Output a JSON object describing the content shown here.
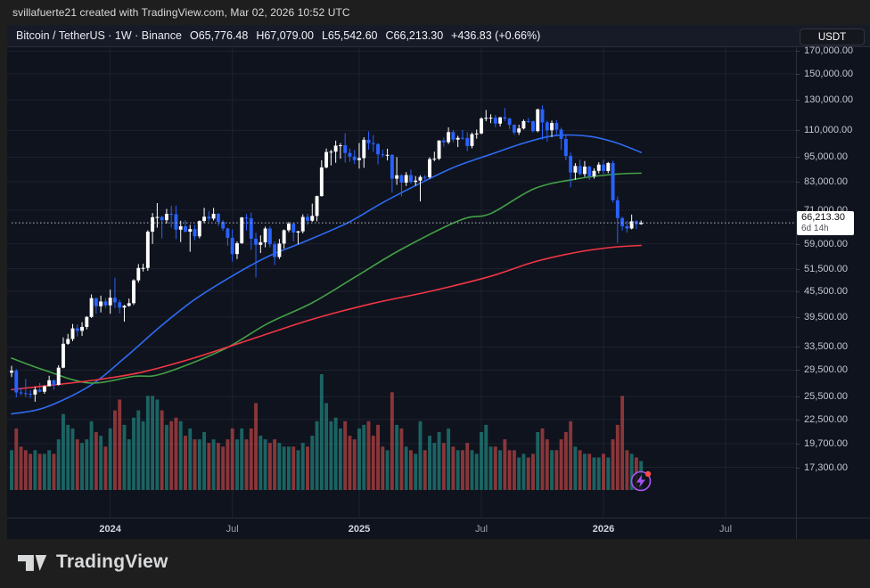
{
  "top_bar": {
    "attribution": "svillafuerte21 created with TradingView.com, Mar 02, 2026 10:52 UTC"
  },
  "header": {
    "symbol_text": "Bitcoin / TetherUS · 1W · Binance",
    "ohlc": {
      "o": "O65,776.48",
      "h": "H67,079.00",
      "l": "L65,542.60",
      "c": "C66,213.30"
    },
    "change": "+436.83 (+0.66%)",
    "currency_button": "USDT"
  },
  "price_scale": {
    "ticks": [
      {
        "label": "170,000.00",
        "price": 170000
      },
      {
        "label": "150,000.00",
        "price": 150000
      },
      {
        "label": "130,000.00",
        "price": 130000
      },
      {
        "label": "110,000.00",
        "price": 110000
      },
      {
        "label": "95,000.00",
        "price": 95000
      },
      {
        "label": "83,000.00",
        "price": 83000
      },
      {
        "label": "71,000.00",
        "price": 71000
      },
      {
        "label": "59,000.00",
        "price": 59000
      },
      {
        "label": "51,500.00",
        "price": 51500
      },
      {
        "label": "45,500.00",
        "price": 45500
      },
      {
        "label": "39,500.00",
        "price": 39500
      },
      {
        "label": "33,500.00",
        "price": 33500
      },
      {
        "label": "29,500.00",
        "price": 29500
      },
      {
        "label": "25,500.00",
        "price": 25500
      },
      {
        "label": "22,500.00",
        "price": 22500
      },
      {
        "label": "19,700.00",
        "price": 19700
      },
      {
        "label": "17,300.00",
        "price": 17300
      }
    ],
    "current_price": {
      "label": "66,213.30",
      "countdown": "6d 14h",
      "price": 66213.3
    }
  },
  "time_scale": {
    "labels": [
      {
        "label": "2024",
        "week": 21,
        "major": true
      },
      {
        "label": "Jul",
        "week": 47,
        "major": false
      },
      {
        "label": "2025",
        "week": 74,
        "major": true
      },
      {
        "label": "Jul",
        "week": 100,
        "major": false
      },
      {
        "label": "2026",
        "week": 126,
        "major": true
      },
      {
        "label": "Jul",
        "week": 152,
        "major": false
      }
    ]
  },
  "branding": {
    "logo_text": "TradingView"
  },
  "colors": {
    "chart_bg": "#0f131d",
    "frame_bg": "#1e1e1e",
    "grid": "#1e2230",
    "candle_up": "#ffffff",
    "candle_down": "#2962ff",
    "volume_up": "rgba(38,166,154,0.55)",
    "volume_down": "rgba(239,83,80,0.55)",
    "ma_fast": "#2e6bf2",
    "ma_mid": "#43a047",
    "ma_slow": "#f23645",
    "dotted_price_line": "#b9bcc5",
    "axis_text": "#c3c7d1",
    "flash_icon": "#a855f7",
    "flash_dot": "#ff4a4a"
  },
  "chart_data": {
    "type": "candlestick",
    "title": "Bitcoin / TetherUS weekly with 3 moving averages and volume",
    "symbol": "BTCUSDT",
    "exchange": "Binance",
    "interval": "1W",
    "scale": "logarithmic",
    "x_range_weeks": [
      "2023-08-07",
      "2026-03-02"
    ],
    "y_axis_unit": "USDT",
    "values_unit": "thousands USDT, columns [open,high,low,close,volume_rel]",
    "last_candle_ohlc": [
      65.776,
      67.079,
      65.543,
      66.213
    ],
    "candles": [
      [
        29.1,
        30.2,
        28.4,
        29.4,
        55
      ],
      [
        29.4,
        29.7,
        25.4,
        26.1,
        85
      ],
      [
        26.1,
        26.8,
        25.7,
        26.0,
        60
      ],
      [
        26.0,
        28.1,
        25.4,
        25.9,
        55
      ],
      [
        25.9,
        26.4,
        25.3,
        25.8,
        50
      ],
      [
        25.8,
        26.9,
        24.8,
        26.5,
        55
      ],
      [
        26.5,
        27.5,
        26.1,
        26.2,
        50
      ],
      [
        26.2,
        27.1,
        25.9,
        27.0,
        50
      ],
      [
        27.0,
        28.6,
        27.0,
        27.9,
        55
      ],
      [
        27.9,
        28.0,
        26.5,
        27.2,
        50
      ],
      [
        27.2,
        30.3,
        27.1,
        29.9,
        70
      ],
      [
        29.9,
        35.3,
        29.8,
        34.1,
        105
      ],
      [
        34.1,
        36.0,
        33.9,
        35.0,
        90
      ],
      [
        35.0,
        38.0,
        34.6,
        37.1,
        85
      ],
      [
        37.1,
        37.9,
        35.5,
        36.6,
        70
      ],
      [
        36.6,
        38.4,
        35.6,
        37.4,
        65
      ],
      [
        37.4,
        39.7,
        36.9,
        39.5,
        70
      ],
      [
        39.5,
        44.7,
        39.3,
        43.8,
        95
      ],
      [
        43.8,
        43.9,
        40.2,
        41.9,
        80
      ],
      [
        41.9,
        44.4,
        40.5,
        43.0,
        75
      ],
      [
        43.0,
        43.8,
        41.5,
        42.1,
        60
      ],
      [
        42.1,
        45.9,
        40.2,
        43.9,
        85
      ],
      [
        43.9,
        49.0,
        41.5,
        42.8,
        110
      ],
      [
        42.8,
        43.4,
        40.3,
        41.6,
        125
      ],
      [
        41.6,
        42.2,
        38.5,
        42.0,
        90
      ],
      [
        42.0,
        43.7,
        41.8,
        42.6,
        70
      ],
      [
        42.6,
        48.6,
        42.2,
        48.3,
        100
      ],
      [
        48.3,
        52.8,
        47.7,
        51.7,
        110
      ],
      [
        51.7,
        52.9,
        50.7,
        51.7,
        95
      ],
      [
        51.7,
        63.6,
        50.9,
        63.1,
        130
      ],
      [
        63.1,
        69.9,
        59.0,
        68.3,
        130
      ],
      [
        68.3,
        73.8,
        64.5,
        68.4,
        125
      ],
      [
        68.4,
        68.9,
        60.8,
        67.2,
        110
      ],
      [
        67.2,
        71.5,
        66.0,
        69.6,
        90
      ],
      [
        69.6,
        72.7,
        64.5,
        69.4,
        95
      ],
      [
        69.4,
        72.8,
        60.6,
        63.8,
        100
      ],
      [
        63.8,
        67.0,
        59.6,
        65.0,
        95
      ],
      [
        65.0,
        67.2,
        62.8,
        63.1,
        75
      ],
      [
        63.1,
        65.5,
        56.5,
        64.0,
        85
      ],
      [
        64.0,
        65.5,
        60.2,
        61.5,
        70
      ],
      [
        61.5,
        67.1,
        60.8,
        66.9,
        70
      ],
      [
        66.9,
        71.9,
        66.1,
        68.5,
        80
      ],
      [
        68.5,
        70.6,
        66.7,
        67.8,
        65
      ],
      [
        67.8,
        71.9,
        67.1,
        69.6,
        70
      ],
      [
        69.6,
        69.9,
        65.1,
        66.6,
        65
      ],
      [
        66.6,
        67.3,
        63.4,
        64.2,
        60
      ],
      [
        64.2,
        64.5,
        58.4,
        61.0,
        70
      ],
      [
        61.0,
        63.9,
        53.5,
        55.8,
        85
      ],
      [
        55.8,
        59.8,
        54.3,
        59.2,
        70
      ],
      [
        59.2,
        68.4,
        59.0,
        68.2,
        85
      ],
      [
        68.2,
        69.5,
        63.5,
        67.9,
        70
      ],
      [
        67.9,
        70.1,
        57.1,
        60.7,
        85
      ],
      [
        60.7,
        62.7,
        49.1,
        58.7,
        120
      ],
      [
        58.7,
        61.8,
        56.1,
        59.5,
        75
      ],
      [
        59.5,
        64.9,
        57.9,
        64.2,
        70
      ],
      [
        64.2,
        65.0,
        57.9,
        58.9,
        65
      ],
      [
        58.9,
        59.8,
        52.5,
        54.9,
        70
      ],
      [
        54.9,
        60.6,
        54.3,
        59.1,
        65
      ],
      [
        59.1,
        63.9,
        57.5,
        63.6,
        60
      ],
      [
        63.6,
        66.5,
        62.9,
        65.9,
        60
      ],
      [
        65.9,
        66.3,
        59.8,
        62.8,
        60
      ],
      [
        62.8,
        63.4,
        58.9,
        63.2,
        55
      ],
      [
        63.2,
        69.4,
        62.5,
        68.4,
        65
      ],
      [
        68.4,
        69.6,
        65.5,
        67.0,
        60
      ],
      [
        67.0,
        73.6,
        66.6,
        68.8,
        75
      ],
      [
        68.8,
        76.9,
        66.8,
        76.7,
        95
      ],
      [
        76.7,
        93.4,
        76.5,
        89.8,
        160
      ],
      [
        89.8,
        99.6,
        89.3,
        97.7,
        120
      ],
      [
        97.7,
        98.9,
        90.8,
        97.9,
        95
      ],
      [
        97.9,
        104.0,
        92.1,
        101.2,
        100
      ],
      [
        101.2,
        102.6,
        94.2,
        101.4,
        85
      ],
      [
        101.4,
        108.3,
        92.2,
        97.2,
        95
      ],
      [
        97.2,
        99.5,
        92.6,
        95.3,
        75
      ],
      [
        95.3,
        98.8,
        91.5,
        93.5,
        70
      ],
      [
        93.5,
        102.7,
        89.2,
        94.5,
        85
      ],
      [
        94.5,
        106.0,
        89.6,
        104.5,
        90
      ],
      [
        104.5,
        109.4,
        99.0,
        102.6,
        95
      ],
      [
        102.6,
        107.2,
        97.8,
        102.1,
        75
      ],
      [
        102.1,
        102.5,
        91.3,
        96.5,
        90
      ],
      [
        96.5,
        98.9,
        94.9,
        96.1,
        60
      ],
      [
        96.1,
        99.5,
        93.3,
        96.2,
        55
      ],
      [
        96.2,
        96.6,
        78.2,
        84.4,
        135
      ],
      [
        84.4,
        95.0,
        81.6,
        86.0,
        90
      ],
      [
        86.0,
        86.5,
        76.6,
        82.6,
        85
      ],
      [
        82.6,
        87.5,
        81.1,
        86.1,
        60
      ],
      [
        86.1,
        88.8,
        82.1,
        82.9,
        55
      ],
      [
        82.9,
        85.6,
        81.2,
        83.5,
        50
      ],
      [
        83.5,
        86.0,
        74.5,
        85.2,
        95
      ],
      [
        85.2,
        86.1,
        83.0,
        85.1,
        55
      ],
      [
        85.1,
        94.9,
        84.4,
        94.0,
        75
      ],
      [
        94.0,
        97.9,
        92.9,
        94.2,
        65
      ],
      [
        94.2,
        104.2,
        93.5,
        104.1,
        80
      ],
      [
        104.1,
        105.8,
        100.7,
        103.1,
        65
      ],
      [
        103.1,
        111.9,
        102.1,
        109.0,
        85
      ],
      [
        109.0,
        110.3,
        103.1,
        104.6,
        60
      ],
      [
        104.6,
        106.8,
        100.4,
        105.6,
        55
      ],
      [
        105.6,
        110.3,
        104.5,
        105.5,
        55
      ],
      [
        105.5,
        108.9,
        98.2,
        101.0,
        65
      ],
      [
        101.0,
        108.8,
        99.7,
        107.8,
        55
      ],
      [
        107.8,
        110.5,
        105.1,
        108.2,
        50
      ],
      [
        108.2,
        118.2,
        107.7,
        117.5,
        80
      ],
      [
        117.5,
        123.1,
        115.7,
        117.9,
        90
      ],
      [
        117.9,
        120.2,
        114.5,
        118.0,
        60
      ],
      [
        118.0,
        119.7,
        111.9,
        114.2,
        60
      ],
      [
        114.2,
        118.5,
        112.4,
        118.2,
        55
      ],
      [
        118.2,
        124.5,
        115.7,
        117.4,
        70
      ],
      [
        117.4,
        118.0,
        110.9,
        113.4,
        55
      ],
      [
        113.4,
        113.8,
        107.4,
        108.8,
        55
      ],
      [
        108.8,
        113.5,
        107.3,
        111.2,
        45
      ],
      [
        111.2,
        116.8,
        110.6,
        115.8,
        50
      ],
      [
        115.8,
        117.9,
        114.6,
        115.7,
        45
      ],
      [
        115.7,
        116.1,
        108.7,
        109.6,
        50
      ],
      [
        109.6,
        124.0,
        108.9,
        123.5,
        80
      ],
      [
        123.5,
        126.2,
        104.6,
        115.0,
        85
      ],
      [
        115.0,
        116.0,
        103.5,
        110.1,
        70
      ],
      [
        110.1,
        116.1,
        106.1,
        114.6,
        55
      ],
      [
        114.6,
        116.5,
        106.6,
        110.5,
        55
      ],
      [
        110.5,
        111.7,
        98.9,
        105.0,
        70
      ],
      [
        105.0,
        107.2,
        93.4,
        95.6,
        80
      ],
      [
        95.6,
        97.4,
        80.5,
        87.3,
        95
      ],
      [
        87.3,
        91.9,
        83.9,
        90.5,
        60
      ],
      [
        90.5,
        93.7,
        85.9,
        86.6,
        55
      ],
      [
        86.6,
        93.0,
        85.3,
        90.2,
        50
      ],
      [
        90.2,
        90.6,
        83.8,
        85.6,
        50
      ],
      [
        85.6,
        89.4,
        84.4,
        88.1,
        45
      ],
      [
        88.1,
        92.4,
        86.9,
        91.2,
        45
      ],
      [
        91.2,
        93.8,
        86.5,
        88.0,
        50
      ],
      [
        88.0,
        92.5,
        87.0,
        92.0,
        45
      ],
      [
        92.0,
        93.2,
        74.0,
        75.0,
        70
      ],
      [
        75.0,
        76.5,
        59.3,
        68.0,
        90
      ],
      [
        68.0,
        68.5,
        63.5,
        65.0,
        130
      ],
      [
        65.0,
        67.0,
        62.8,
        64.2,
        55
      ],
      [
        64.2,
        69.3,
        63.9,
        66.8,
        50
      ],
      [
        66.8,
        67.2,
        64.0,
        65.8,
        45
      ],
      [
        65.776,
        67.079,
        65.543,
        66.213,
        40
      ]
    ],
    "ma_lines": [
      {
        "name": "ma-fast-blue",
        "color_key": "ma_fast",
        "points": [
          [
            0,
            23.2
          ],
          [
            7,
            24.0
          ],
          [
            16.5,
            27.0
          ],
          [
            24,
            31.5
          ],
          [
            31.7,
            37.5
          ],
          [
            39,
            43.5
          ],
          [
            47,
            49.5
          ],
          [
            54.5,
            55.0
          ],
          [
            62,
            59.5
          ],
          [
            71.5,
            66.2
          ],
          [
            79,
            74.0
          ],
          [
            86.7,
            82.0
          ],
          [
            94.3,
            90.0
          ],
          [
            102,
            96.5
          ],
          [
            109.5,
            103.0
          ],
          [
            116,
            107.0
          ],
          [
            123,
            106.5
          ],
          [
            128.5,
            103.0
          ],
          [
            134,
            97.5
          ]
        ]
      },
      {
        "name": "ma-mid-green",
        "color_key": "ma_mid",
        "points": [
          [
            0,
            31.5
          ],
          [
            7,
            29.5
          ],
          [
            16.5,
            27.5
          ],
          [
            26,
            28.5
          ],
          [
            32,
            28.9
          ],
          [
            45,
            33.0
          ],
          [
            54.5,
            38.1
          ],
          [
            64,
            42.7
          ],
          [
            73.4,
            49.4
          ],
          [
            83,
            57.3
          ],
          [
            95.6,
            67.3
          ],
          [
            102,
            69.7
          ],
          [
            111.4,
            80.0
          ],
          [
            120.9,
            84.5
          ],
          [
            128.5,
            86.5
          ],
          [
            134,
            87.0
          ]
        ]
      },
      {
        "name": "ma-slow-red",
        "color_key": "ma_slow",
        "points": [
          [
            0,
            26.5
          ],
          [
            9,
            27.2
          ],
          [
            18.4,
            28.0
          ],
          [
            27.9,
            29.2
          ],
          [
            38.7,
            31.5
          ],
          [
            51.2,
            35.0
          ],
          [
            64,
            39.0
          ],
          [
            76.7,
            42.5
          ],
          [
            89.2,
            45.5
          ],
          [
            102,
            49.4
          ],
          [
            111.4,
            53.5
          ],
          [
            120.9,
            56.5
          ],
          [
            128.5,
            58.0
          ],
          [
            134,
            58.5
          ]
        ]
      }
    ],
    "current_price_line": 66213.3,
    "volume_max_rel": 160,
    "legend_position": "none",
    "grid": true
  }
}
